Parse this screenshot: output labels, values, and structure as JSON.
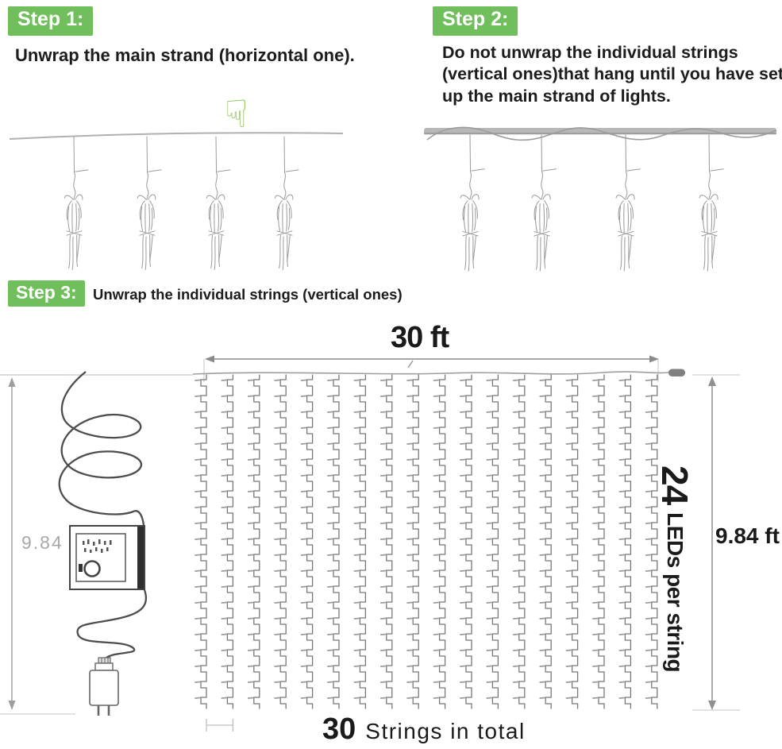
{
  "steps": {
    "step1": {
      "badge": "Step 1:",
      "text": "Unwrap the main strand (horizontal one)."
    },
    "step2": {
      "badge": "Step 2:",
      "text": "Do not unwrap the individual strings (vertical ones)that hang until you have set up the main strand of lights."
    },
    "step3": {
      "badge": "Step 3:",
      "text": "Unwrap the individual strings (vertical ones)"
    }
  },
  "diagram": {
    "width_label": "30 ft",
    "height_right": "9.84 ft",
    "height_left": "9.84",
    "leds_value": "24",
    "leds_label": "LEDs per string",
    "total_value": "30",
    "total_label": "Strings in total"
  },
  "icons": {
    "hand_down_glyph": "☟"
  },
  "colors": {
    "badge_green": "#70bf5c",
    "badge_text": "#ffffff",
    "hand_green": "#92c75e",
    "text_dark": "#1c1c1c",
    "muted_gray": "#a8a8a8",
    "line_gray": "#9a9a9a"
  }
}
